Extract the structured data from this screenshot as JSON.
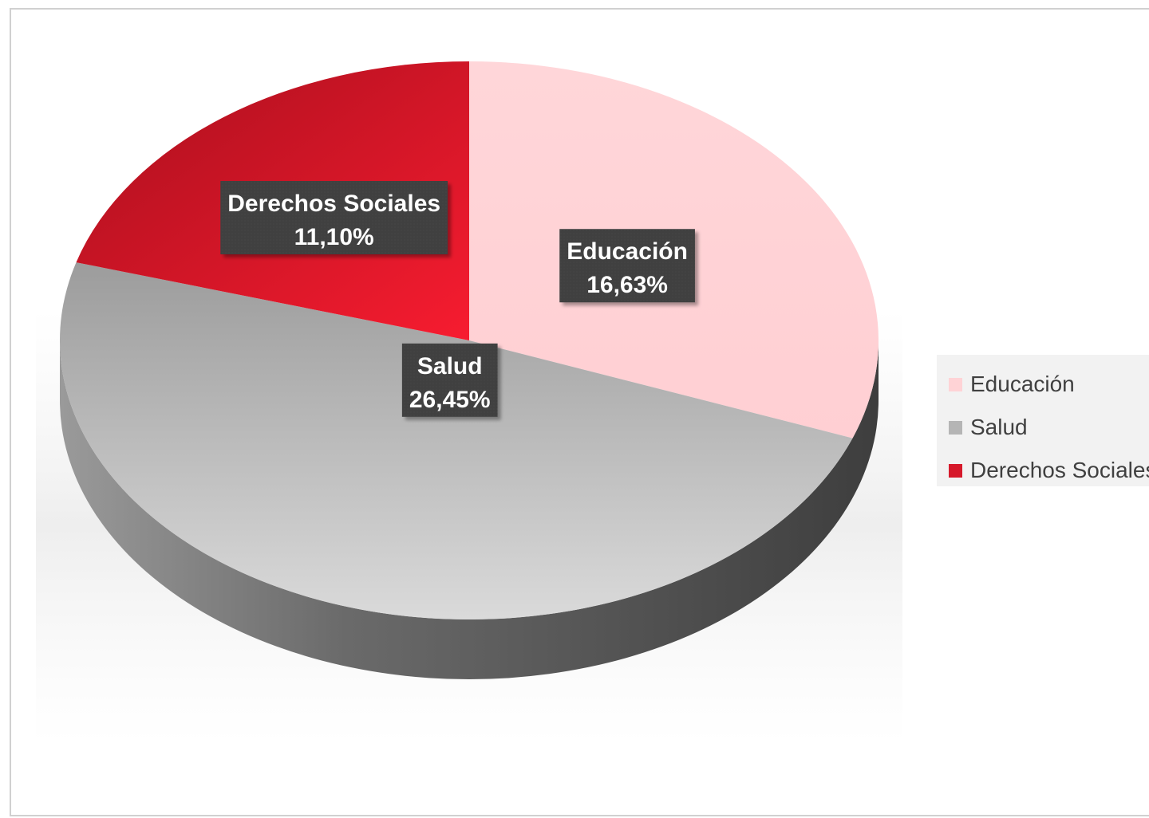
{
  "chart_data": {
    "type": "pie",
    "categories": [
      "Educación",
      "Salud",
      "Derechos Sociales"
    ],
    "values": [
      16.63,
      26.45,
      11.1
    ],
    "data_labels": [
      {
        "name": "Educación",
        "value": "16,63%"
      },
      {
        "name": "Salud",
        "value": "26,45%"
      },
      {
        "name": "Derechos Sociales",
        "value": "11,10%"
      }
    ],
    "colors": [
      "#ffd3d6",
      "#b5b5b5",
      "#d6192b"
    ],
    "style": "3d",
    "legend": {
      "position": "right",
      "items": [
        "Educación",
        "Salud",
        "Derechos Sociales"
      ]
    },
    "label_box_color": "#404040"
  }
}
